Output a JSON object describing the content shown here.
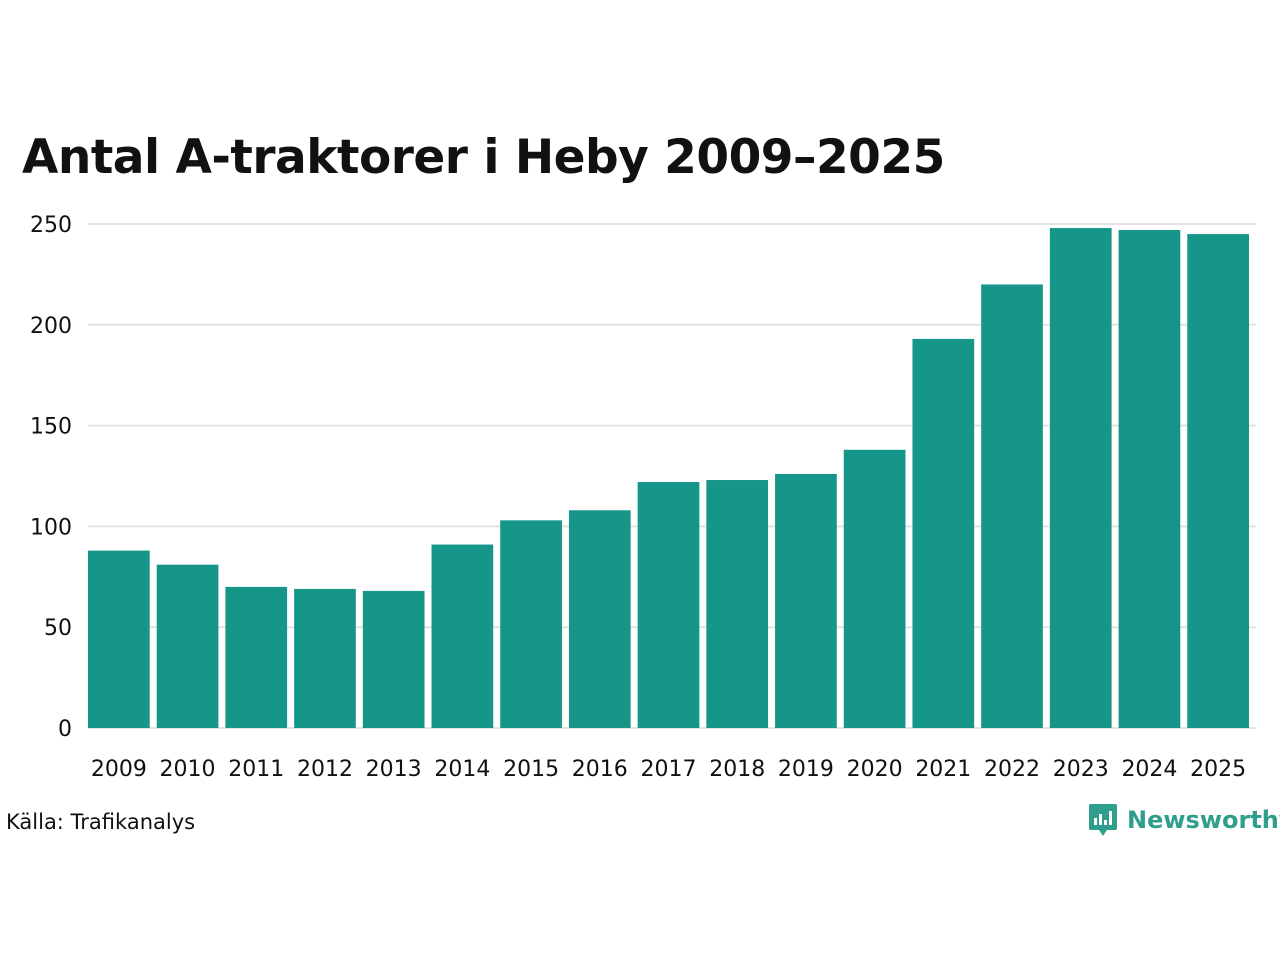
{
  "title": "Antal A-traktorer i Heby 2009–2025",
  "source": "Källa: Trafikanalys",
  "brand": {
    "name": "Newsworthy",
    "icon": "newsworthy-logo-icon"
  },
  "colors": {
    "bar": "#159688",
    "grid": "#e3e3e3",
    "text": "#111111",
    "brand": "#2f9e8d"
  },
  "chart_data": {
    "type": "bar",
    "title": "Antal A-traktorer i Heby 2009–2025",
    "xlabel": "",
    "ylabel": "",
    "categories": [
      "2009",
      "2010",
      "2011",
      "2012",
      "2013",
      "2014",
      "2015",
      "2016",
      "2017",
      "2018",
      "2019",
      "2020",
      "2021",
      "2022",
      "2023",
      "2024",
      "2025"
    ],
    "values": [
      88,
      81,
      70,
      69,
      68,
      91,
      103,
      108,
      122,
      123,
      126,
      138,
      193,
      220,
      248,
      247,
      245
    ],
    "yticks": [
      0,
      50,
      100,
      150,
      200,
      250
    ],
    "ylim": [
      0,
      250
    ],
    "grid": true,
    "legend": "none"
  }
}
